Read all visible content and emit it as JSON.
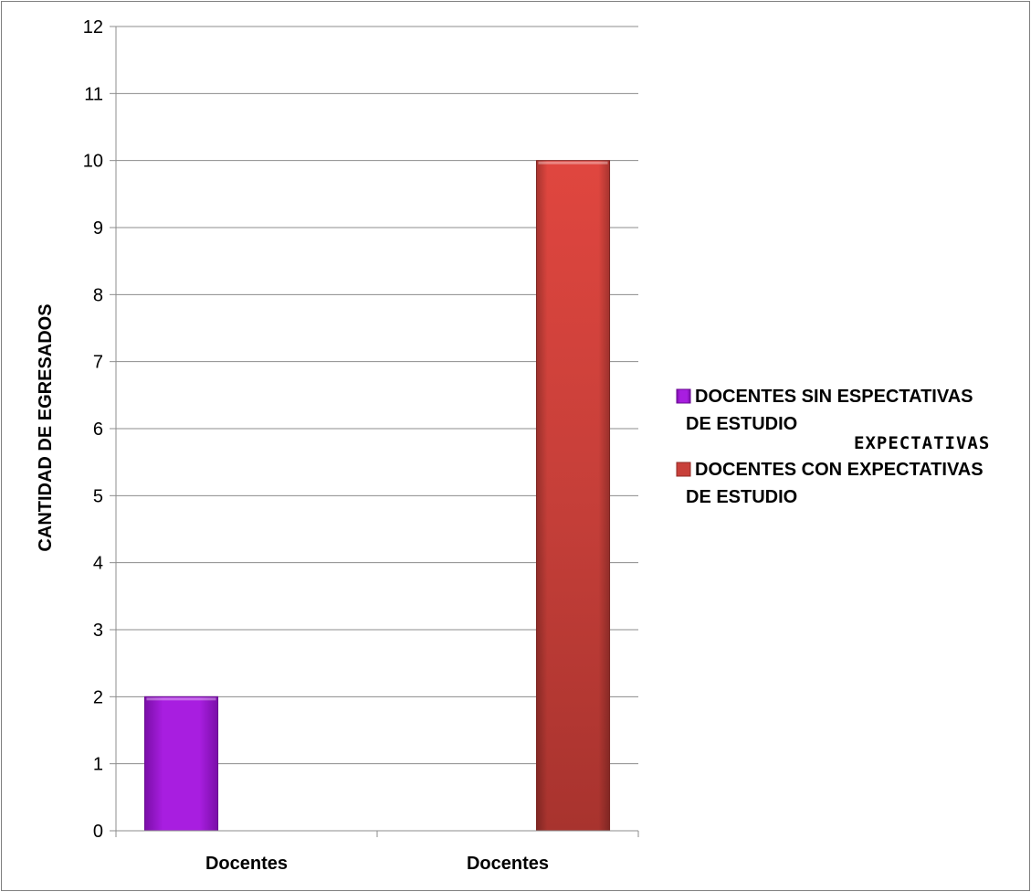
{
  "chart_data": {
    "type": "bar",
    "categories": [
      "Docentes",
      "Docentes"
    ],
    "series": [
      {
        "name": "DOCENTES SIN ESPECTATIVAS DE ESTUDIO",
        "color": "#9b12d6",
        "category_index": 0,
        "value": 2
      },
      {
        "name": "DOCENTES CON EXPECTATIVAS DE ESTUDIO",
        "color": "#c8403a",
        "category_index": 1,
        "value": 10
      }
    ],
    "ylabel": "CANTIDAD DE EGRESADOS",
    "xlabel": "",
    "ylim": [
      0,
      12
    ],
    "yticks": [
      0,
      1,
      2,
      3,
      4,
      5,
      6,
      7,
      8,
      9,
      10,
      11,
      12
    ],
    "grid": true,
    "legend_position": "right",
    "legend_lines": [
      [
        "DOCENTES SIN ESPECTATIVAS",
        "DE ESTUDIO"
      ],
      [
        "DOCENTES CON EXPECTATIVAS",
        "DE ESTUDIO"
      ]
    ],
    "overlay_text": "EXPECTATIVAS"
  }
}
